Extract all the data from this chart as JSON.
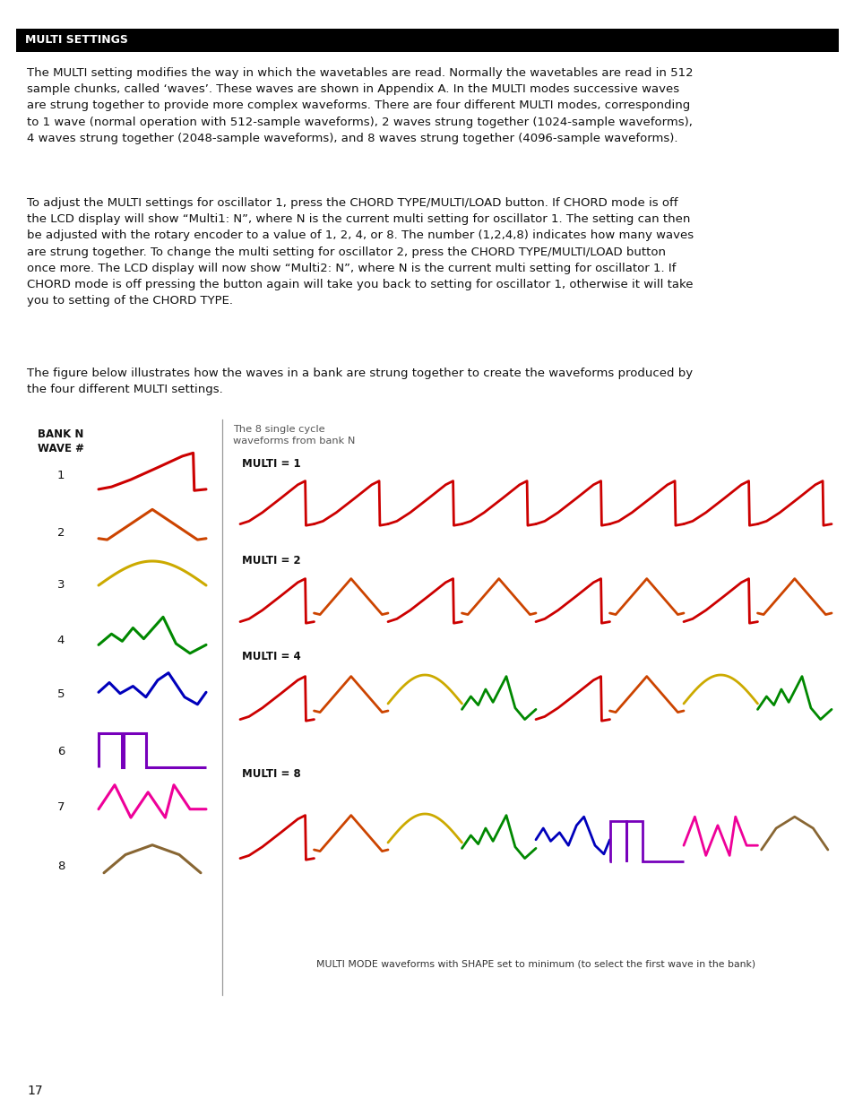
{
  "title_bar_text": "MULTI SETTINGS",
  "title_bar_bg": "#000000",
  "title_bar_text_color": "#ffffff",
  "page_bg": "#ffffff",
  "page_number": "17",
  "body_text_1": "The MULTI setting modifies the way in which the wavetables are read. Normally the wavetables are read in 512\nsample chunks, called ‘waves’. These waves are shown in Appendix A. In the MULTI modes successive waves\nare strung together to provide more complex waveforms. There are four different MULTI modes, corresponding\nto 1 wave (normal operation with 512-sample waveforms), 2 waves strung together (1024-sample waveforms),\n4 waves strung together (2048-sample waveforms), and 8 waves strung together (4096-sample waveforms).",
  "body_text_2": "To adjust the MULTI settings for oscillator 1, press the CHORD TYPE/MULTI/LOAD button. If CHORD mode is off\nthe LCD display will show “Multi1: N”, where N is the current multi setting for oscillator 1. The setting can then\nbe adjusted with the rotary encoder to a value of 1, 2, 4, or 8. The number (1,2,4,8) indicates how many waves\nare strung together. To change the multi setting for oscillator 2, press the CHORD TYPE/MULTI/LOAD button\nonce more. The LCD display will now show “Multi2: N”, where N is the current multi setting for oscillator 1. If\nCHORD mode is off pressing the button again will take you back to setting for oscillator 1, otherwise it will take\nyou to setting of the CHORD TYPE.",
  "body_text_3": "The figure below illustrates how the waves in a bank are strung together to create the waveforms produced by\nthe four different MULTI settings.",
  "bank_label": "BANK N\nWAVE #",
  "bank_sublabel": "The 8 single cycle\nwaveforms from bank N",
  "wave_numbers": [
    "1",
    "2",
    "3",
    "4",
    "5",
    "6",
    "7",
    "8"
  ],
  "wave_colors": [
    "#cc0000",
    "#cc4400",
    "#ccaa00",
    "#008800",
    "#0000bb",
    "#7700bb",
    "#ee0099",
    "#886633"
  ],
  "multi_labels": [
    "MULTI = 1",
    "MULTI = 2",
    "MULTI = 4",
    "MULTI = 8"
  ],
  "caption": "MULTI MODE waveforms with SHAPE set to minimum (to select the first wave in the bank)",
  "font_size_body": 9.5,
  "font_size_caption": 7.8
}
